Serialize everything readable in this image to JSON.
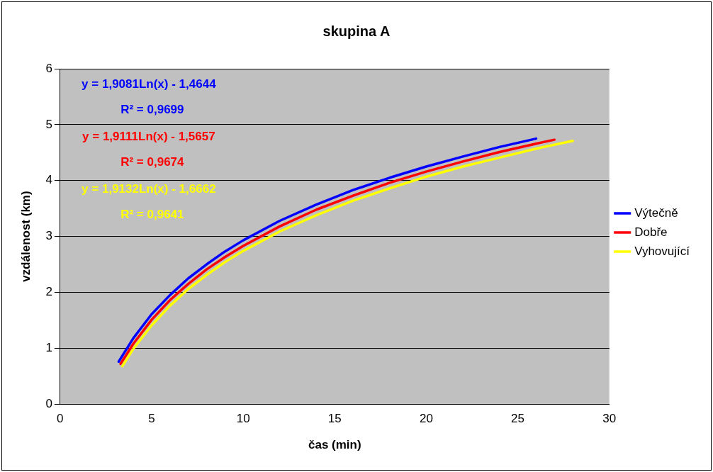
{
  "chart_data": {
    "type": "line",
    "title": "skupina A",
    "xlabel": "čas (min)",
    "ylabel": "vzdálenost (km)",
    "xlim": [
      0,
      30
    ],
    "xticks": [
      0,
      5,
      10,
      15,
      20,
      25,
      30
    ],
    "ylim": [
      0,
      6
    ],
    "yticks": [
      0,
      1,
      2,
      3,
      4,
      5,
      6
    ],
    "grid": "y",
    "legend": "right",
    "marker": "none",
    "line_style": "solid",
    "annotations": [
      "y = 1,9081Ln(x) - 1,4644",
      "R² = 0,9699",
      "y = 1,9111Ln(x) - 1,5657",
      "R² = 0,9674",
      "y = 1,9132Ln(x) - 1,6662",
      "R² = 0,9641"
    ],
    "series": [
      {
        "name": "Výtečně",
        "color": "#0000ff",
        "x": [
          3.2,
          4,
          5,
          6,
          7,
          8,
          9,
          10,
          12,
          14,
          16,
          18,
          20,
          22,
          24,
          26
        ],
        "values": [
          0.76,
          1.18,
          1.61,
          1.95,
          2.25,
          2.5,
          2.73,
          2.93,
          3.28,
          3.57,
          3.83,
          4.05,
          4.25,
          4.43,
          4.6,
          4.75
        ]
      },
      {
        "name": "Dobře",
        "color": "#ff0000",
        "x": [
          3.3,
          4,
          5,
          6,
          7,
          8,
          9,
          10,
          12,
          14,
          16,
          18,
          20,
          22,
          24,
          26,
          27
        ],
        "values": [
          0.72,
          1.08,
          1.51,
          1.86,
          2.15,
          2.41,
          2.63,
          2.83,
          3.18,
          3.48,
          3.73,
          3.96,
          4.16,
          4.34,
          4.51,
          4.66,
          4.73
        ]
      },
      {
        "name": "Vyhovující",
        "color": "#ffff00",
        "x": [
          3.4,
          4,
          5,
          6,
          7,
          8,
          9,
          10,
          12,
          14,
          16,
          18,
          20,
          22,
          24,
          26,
          28
        ],
        "values": [
          0.68,
          0.99,
          1.41,
          1.76,
          2.06,
          2.31,
          2.54,
          2.74,
          3.09,
          3.38,
          3.64,
          3.86,
          4.07,
          4.25,
          4.41,
          4.57,
          4.71
        ]
      }
    ]
  }
}
